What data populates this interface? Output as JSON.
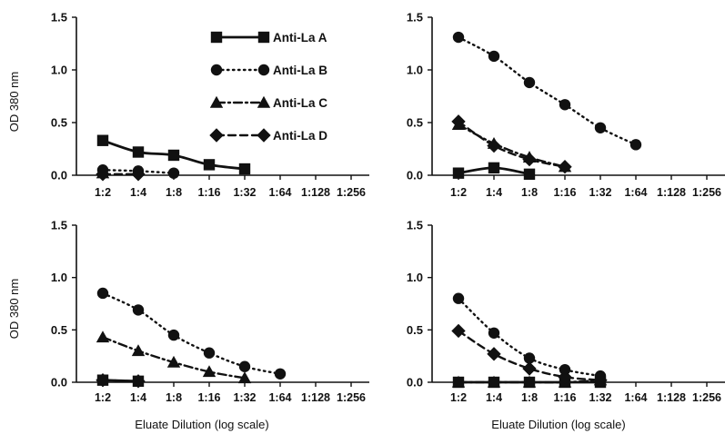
{
  "figure": {
    "x_title": "Eluate Dilution (log scale)",
    "y_title": "OD 380 nm"
  },
  "chart_data": [
    {
      "type": "line",
      "panel": "top-left",
      "categories": [
        "1:2",
        "1:4",
        "1:8",
        "1:16",
        "1:32",
        "1:64",
        "1:128",
        "1:256"
      ],
      "yticks": [
        "0.0",
        "0.5",
        "1.0",
        "1.5"
      ],
      "ylim": [
        0,
        1.5
      ],
      "xlabel": "",
      "ylabel": "OD 380 nm",
      "legend_position": "top-right",
      "series": [
        {
          "name": "Anti-La A",
          "marker": "square",
          "dash": "solid",
          "values": [
            0.33,
            0.22,
            0.19,
            0.1,
            0.06,
            null,
            null,
            null
          ]
        },
        {
          "name": "Anti-La B",
          "marker": "circle",
          "dash": "dotted",
          "values": [
            0.05,
            0.04,
            0.02,
            null,
            null,
            null,
            null,
            null
          ]
        },
        {
          "name": "Anti-La C",
          "marker": "triangle",
          "dash": "dashdot",
          "values": [
            0.02,
            null,
            null,
            null,
            null,
            null,
            null,
            null
          ]
        },
        {
          "name": "Anti-La D",
          "marker": "diamond",
          "dash": "dashed",
          "values": [
            0.01,
            0.01,
            null,
            null,
            null,
            null,
            null,
            null
          ]
        }
      ]
    },
    {
      "type": "line",
      "panel": "top-right",
      "categories": [
        "1:2",
        "1:4",
        "1:8",
        "1:16",
        "1:32",
        "1:64",
        "1:128",
        "1:256"
      ],
      "yticks": [
        "0.0",
        "0.5",
        "1.0",
        "1.5"
      ],
      "ylim": [
        0,
        1.5
      ],
      "xlabel": "",
      "ylabel": "",
      "series": [
        {
          "marker": "square",
          "dash": "solid",
          "values": [
            0.02,
            0.07,
            0.01,
            null,
            null,
            null,
            null,
            null
          ]
        },
        {
          "marker": "circle",
          "dash": "dotted",
          "values": [
            1.31,
            1.13,
            0.88,
            0.67,
            0.45,
            0.29,
            null,
            null
          ]
        },
        {
          "marker": "triangle",
          "dash": "dashdot",
          "values": [
            0.48,
            0.3,
            0.17,
            0.08,
            null,
            null,
            null,
            null
          ]
        },
        {
          "marker": "diamond",
          "dash": "dashed",
          "values": [
            0.51,
            0.28,
            0.15,
            0.08,
            null,
            null,
            null,
            null
          ]
        }
      ]
    },
    {
      "type": "line",
      "panel": "bottom-left",
      "categories": [
        "1:2",
        "1:4",
        "1:8",
        "1:16",
        "1:32",
        "1:64",
        "1:128",
        "1:256"
      ],
      "yticks": [
        "0.0",
        "0.5",
        "1.0",
        "1.5"
      ],
      "ylim": [
        0,
        1.5
      ],
      "xlabel": "Eluate Dilution (log scale)",
      "ylabel": "OD 380 nm",
      "series": [
        {
          "marker": "square",
          "dash": "solid",
          "values": [
            0.02,
            0.01,
            null,
            null,
            null,
            null,
            null,
            null
          ]
        },
        {
          "marker": "circle",
          "dash": "dotted",
          "values": [
            0.85,
            0.69,
            0.45,
            0.28,
            0.15,
            0.08,
            null,
            null
          ]
        },
        {
          "marker": "triangle",
          "dash": "dashdot",
          "values": [
            0.43,
            0.3,
            0.19,
            0.1,
            0.04,
            null,
            null,
            null
          ]
        },
        {
          "marker": "diamond",
          "dash": "dashed",
          "values": [
            0.02,
            0.01,
            null,
            null,
            null,
            null,
            null,
            null
          ]
        }
      ]
    },
    {
      "type": "line",
      "panel": "bottom-right",
      "categories": [
        "1:2",
        "1:4",
        "1:8",
        "1:16",
        "1:32",
        "1:64",
        "1:128",
        "1:256"
      ],
      "yticks": [
        "0.0",
        "0.5",
        "1.0",
        "1.5"
      ],
      "ylim": [
        0,
        1.5
      ],
      "xlabel": "Eluate Dilution (log scale)",
      "ylabel": "",
      "series": [
        {
          "marker": "square",
          "dash": "solid",
          "values": [
            0.0,
            0.0,
            0.0,
            0.0,
            0.0,
            null,
            null,
            null
          ]
        },
        {
          "marker": "circle",
          "dash": "dotted",
          "values": [
            0.8,
            0.47,
            0.23,
            0.12,
            0.06,
            null,
            null,
            null
          ]
        },
        {
          "marker": "triangle",
          "dash": "dashdot",
          "values": [
            0.0,
            0.0,
            0.0,
            0.0,
            0.02,
            null,
            null,
            null
          ]
        },
        {
          "marker": "diamond",
          "dash": "dashed",
          "values": [
            0.49,
            0.27,
            0.13,
            0.05,
            0.02,
            null,
            null,
            null
          ]
        }
      ]
    }
  ]
}
